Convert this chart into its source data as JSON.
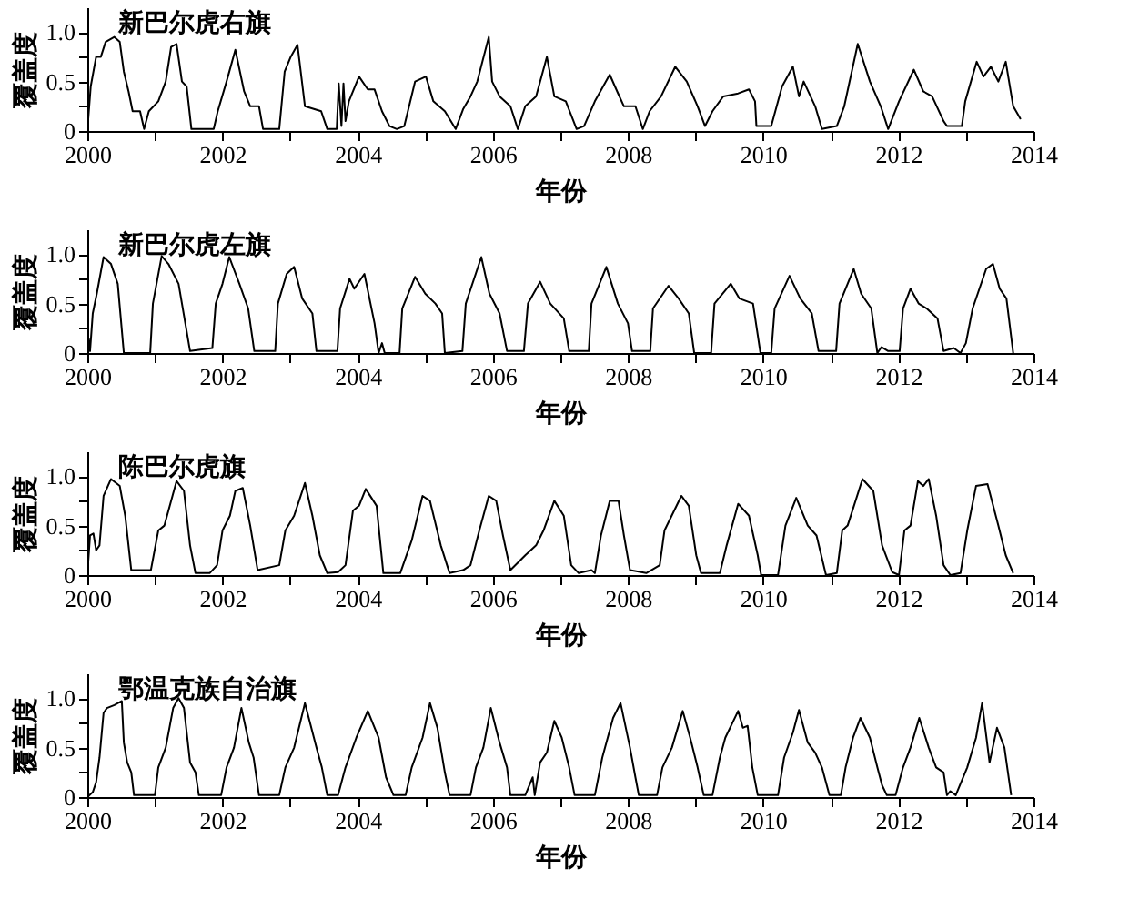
{
  "chart_data": [
    {
      "type": "line",
      "title": "新巴尔虎右旗",
      "xlabel": "年份",
      "ylabel": "覆盖度",
      "xlim": [
        2000,
        2014
      ],
      "ylim": [
        0,
        1.25
      ],
      "xticks": [
        2000,
        {
          "value": 2001,
          "label": null
        },
        2002,
        {
          "value": 2003,
          "label": null
        },
        2004,
        {
          "value": 2005,
          "label": null
        },
        2006,
        {
          "value": 2007,
          "label": null
        },
        2008,
        {
          "value": 2009,
          "label": null
        },
        2010,
        {
          "value": 2011,
          "label": null
        },
        2012,
        {
          "value": 2013,
          "label": null
        },
        2014
      ],
      "yticks": [
        0,
        {
          "value": 0.25,
          "label": null
        },
        0.5,
        {
          "value": 0.75,
          "label": null
        },
        {
          "value": 1,
          "label": "1.0"
        }
      ],
      "grid": false,
      "series": [
        {
          "color": "#000000",
          "x": [
            2000.0,
            2000.05,
            2000.13,
            2000.2,
            2000.27,
            2000.4,
            2000.48,
            2000.54,
            2000.61,
            2000.67,
            2000.78,
            2000.84,
            2000.91,
            2001.05,
            2001.16,
            2001.24,
            2001.32,
            2001.4,
            2001.47,
            2001.54,
            2001.87,
            2001.93,
            2002.06,
            2002.19,
            2002.32,
            2002.41,
            2002.54,
            2002.6,
            2002.84,
            2002.92,
            2003.01,
            2003.11,
            2003.22,
            2003.46,
            2003.55,
            2003.69,
            2003.72,
            2003.76,
            2003.79,
            2003.82,
            2003.87,
            2004.02,
            2004.15,
            2004.25,
            2004.36,
            2004.47,
            2004.58,
            2004.69,
            2004.85,
            2005.01,
            2005.12,
            2005.29,
            2005.45,
            2005.56,
            2005.67,
            2005.77,
            2005.94,
            2005.99,
            2006.1,
            2006.26,
            2006.37,
            2006.48,
            2006.64,
            2006.8,
            2006.91,
            2007.08,
            2007.24,
            2007.35,
            2007.51,
            2007.73,
            2007.84,
            2007.94,
            2008.11,
            2008.22,
            2008.32,
            2008.49,
            2008.7,
            2008.87,
            2009.03,
            2009.14,
            2009.25,
            2009.41,
            2009.63,
            2009.79,
            2009.88,
            2009.9,
            2010.12,
            2010.28,
            2010.44,
            2010.53,
            2010.6,
            2010.77,
            2010.87,
            2011.09,
            2011.2,
            2011.4,
            2011.58,
            2011.74,
            2011.85,
            2012.01,
            2012.23,
            2012.37,
            2012.5,
            2012.67,
            2012.72,
            2012.94,
            2012.99,
            2013.16,
            2013.26,
            2013.37,
            2013.48,
            2013.59,
            2013.7,
            2013.81
          ],
          "values": [
            0,
            0.45,
            0.75,
            0.75,
            0.9,
            0.95,
            0.9,
            0.6,
            0.4,
            0.2,
            0.2,
            0.02,
            0.2,
            0.3,
            0.5,
            0.85,
            0.88,
            0.5,
            0.45,
            0.02,
            0.02,
            0.2,
            0.5,
            0.82,
            0.4,
            0.25,
            0.25,
            0.02,
            0.02,
            0.6,
            0.75,
            0.87,
            0.25,
            0.2,
            0.02,
            0.02,
            0.48,
            0.05,
            0.48,
            0.1,
            0.3,
            0.55,
            0.42,
            0.42,
            0.2,
            0.05,
            0.02,
            0.05,
            0.5,
            0.55,
            0.3,
            0.2,
            0.02,
            0.22,
            0.35,
            0.5,
            0.95,
            0.5,
            0.35,
            0.25,
            0.02,
            0.25,
            0.35,
            0.75,
            0.35,
            0.3,
            0.02,
            0.05,
            0.3,
            0.57,
            0.4,
            0.25,
            0.25,
            0.02,
            0.2,
            0.35,
            0.65,
            0.5,
            0.25,
            0.05,
            0.2,
            0.35,
            0.38,
            0.42,
            0.3,
            0.05,
            0.05,
            0.45,
            0.65,
            0.35,
            0.5,
            0.25,
            0.02,
            0.05,
            0.25,
            0.88,
            0.5,
            0.25,
            0.02,
            0.3,
            0.62,
            0.4,
            0.35,
            0.1,
            0.05,
            0.05,
            0.3,
            0.7,
            0.55,
            0.65,
            0.5,
            0.7,
            0.25,
            0.12
          ]
        }
      ]
    },
    {
      "type": "line",
      "title": "新巴尔虎左旗",
      "xlabel": "年份",
      "ylabel": "覆盖度",
      "xlim": [
        2000,
        2014
      ],
      "ylim": [
        0,
        1.25
      ],
      "xticks": [
        2000,
        {
          "value": 2001,
          "label": null
        },
        2002,
        {
          "value": 2003,
          "label": null
        },
        2004,
        {
          "value": 2005,
          "label": null
        },
        2006,
        {
          "value": 2007,
          "label": null
        },
        2008,
        {
          "value": 2009,
          "label": null
        },
        2010,
        {
          "value": 2011,
          "label": null
        },
        2012,
        {
          "value": 2013,
          "label": null
        },
        2014
      ],
      "yticks": [
        0,
        {
          "value": 0.25,
          "label": null
        },
        0.5,
        {
          "value": 0.75,
          "label": null
        },
        {
          "value": 1,
          "label": "1.0"
        }
      ],
      "grid": false,
      "series": [
        {
          "color": "#000000",
          "x": [
            2000.0,
            2000.02,
            2000.04,
            2000.08,
            2000.14,
            2000.24,
            2000.35,
            2000.45,
            2000.54,
            2000.93,
            2000.97,
            2001.1,
            2001.2,
            2001.35,
            2001.52,
            2001.85,
            2001.9,
            2002.0,
            2002.1,
            2002.25,
            2002.38,
            2002.47,
            2002.78,
            2002.82,
            2002.95,
            2003.06,
            2003.18,
            2003.33,
            2003.39,
            2003.7,
            2003.74,
            2003.88,
            2003.95,
            2004.1,
            2004.25,
            2004.31,
            2004.36,
            2004.4,
            2004.62,
            2004.66,
            2004.85,
            2005.0,
            2005.15,
            2005.25,
            2005.29,
            2005.55,
            2005.6,
            2005.83,
            2005.95,
            2006.1,
            2006.21,
            2006.46,
            2006.52,
            2006.7,
            2006.85,
            2007.05,
            2007.13,
            2007.42,
            2007.46,
            2007.68,
            2007.85,
            2008.0,
            2008.06,
            2008.33,
            2008.37,
            2008.6,
            2008.75,
            2008.9,
            2008.98,
            2009.23,
            2009.28,
            2009.52,
            2009.65,
            2009.85,
            2009.96,
            2010.12,
            2010.17,
            2010.39,
            2010.55,
            2010.72,
            2010.82,
            2011.08,
            2011.13,
            2011.34,
            2011.45,
            2011.6,
            2011.69,
            2011.75,
            2011.85,
            2012.02,
            2012.07,
            2012.18,
            2012.3,
            2012.42,
            2012.58,
            2012.67,
            2012.82,
            2012.92,
            2013.0,
            2013.1,
            2013.3,
            2013.4,
            2013.5,
            2013.6,
            2013.7
          ],
          "values": [
            0.1,
            0.15,
            0.02,
            0.4,
            0.6,
            0.97,
            0.9,
            0.7,
            0,
            0,
            0.5,
            0.98,
            0.9,
            0.7,
            0.02,
            0.05,
            0.5,
            0.7,
            0.97,
            0.7,
            0.45,
            0.02,
            0.02,
            0.5,
            0.8,
            0.87,
            0.55,
            0.4,
            0.02,
            0.02,
            0.45,
            0.75,
            0.65,
            0.8,
            0.3,
            0,
            0.1,
            0,
            0,
            0.45,
            0.77,
            0.6,
            0.5,
            0.4,
            0,
            0.02,
            0.5,
            0.97,
            0.6,
            0.4,
            0.02,
            0.02,
            0.5,
            0.72,
            0.5,
            0.35,
            0.02,
            0.02,
            0.5,
            0.87,
            0.5,
            0.3,
            0.02,
            0.02,
            0.45,
            0.68,
            0.55,
            0.4,
            0,
            0,
            0.5,
            0.7,
            0.55,
            0.5,
            0,
            0,
            0.45,
            0.78,
            0.55,
            0.4,
            0.02,
            0.02,
            0.5,
            0.85,
            0.6,
            0.45,
            0,
            0.06,
            0.02,
            0.02,
            0.45,
            0.65,
            0.5,
            0.45,
            0.35,
            0.02,
            0.05,
            0,
            0.1,
            0.45,
            0.85,
            0.9,
            0.65,
            0.55,
            0
          ]
        }
      ]
    },
    {
      "type": "line",
      "title": "陈巴尔虎旗",
      "xlabel": "年份",
      "ylabel": "覆盖度",
      "xlim": [
        2000,
        2014
      ],
      "ylim": [
        0,
        1.25
      ],
      "xticks": [
        2000,
        {
          "value": 2001,
          "label": null
        },
        2002,
        {
          "value": 2003,
          "label": null
        },
        2004,
        {
          "value": 2005,
          "label": null
        },
        2006,
        {
          "value": 2007,
          "label": null
        },
        2008,
        {
          "value": 2009,
          "label": null
        },
        2010,
        {
          "value": 2011,
          "label": null
        },
        2012,
        {
          "value": 2013,
          "label": null
        },
        2014
      ],
      "yticks": [
        0,
        {
          "value": 0.25,
          "label": null
        },
        0.5,
        {
          "value": 0.75,
          "label": null
        },
        {
          "value": 1,
          "label": "1.0"
        }
      ],
      "grid": false,
      "series": [
        {
          "color": "#000000",
          "x": [
            2000.0,
            2000.04,
            2000.09,
            2000.13,
            2000.18,
            2000.24,
            2000.35,
            2000.48,
            2000.56,
            2000.65,
            2000.94,
            2001.05,
            2001.14,
            2001.32,
            2001.43,
            2001.52,
            2001.6,
            2001.81,
            2001.92,
            2002.0,
            2002.11,
            2002.19,
            2002.3,
            2002.41,
            2002.52,
            2002.84,
            2002.93,
            2003.06,
            2003.22,
            2003.33,
            2003.44,
            2003.55,
            2003.71,
            2003.82,
            2003.93,
            2004.02,
            2004.12,
            2004.28,
            2004.38,
            2004.63,
            2004.8,
            2004.96,
            2005.07,
            2005.23,
            2005.36,
            2005.56,
            2005.67,
            2005.8,
            2005.94,
            2006.05,
            2006.15,
            2006.26,
            2006.48,
            2006.64,
            2006.75,
            2006.91,
            2007.05,
            2007.16,
            2007.27,
            2007.46,
            2007.51,
            2007.6,
            2007.73,
            2007.86,
            2007.94,
            2008.03,
            2008.27,
            2008.47,
            2008.54,
            2008.79,
            2008.9,
            2009.01,
            2009.08,
            2009.36,
            2009.46,
            2009.63,
            2009.79,
            2009.92,
            2009.97,
            2010.22,
            2010.33,
            2010.49,
            2010.66,
            2010.79,
            2010.93,
            2011.09,
            2011.17,
            2011.25,
            2011.47,
            2011.63,
            2011.76,
            2011.91,
            2012.01,
            2012.09,
            2012.18,
            2012.29,
            2012.37,
            2012.45,
            2012.56,
            2012.67,
            2012.77,
            2012.92,
            2013.02,
            2013.15,
            2013.32,
            2013.48,
            2013.59,
            2013.7
          ],
          "values": [
            0,
            0.4,
            0.42,
            0.25,
            0.3,
            0.8,
            0.97,
            0.9,
            0.6,
            0.05,
            0.05,
            0.45,
            0.5,
            0.95,
            0.85,
            0.3,
            0.02,
            0.02,
            0.1,
            0.45,
            0.6,
            0.85,
            0.88,
            0.5,
            0.05,
            0.1,
            0.45,
            0.6,
            0.93,
            0.6,
            0.2,
            0.02,
            0.03,
            0.1,
            0.65,
            0.7,
            0.87,
            0.7,
            0.02,
            0.02,
            0.35,
            0.8,
            0.75,
            0.3,
            0.02,
            0.05,
            0.1,
            0.45,
            0.8,
            0.75,
            0.4,
            0.05,
            0.2,
            0.3,
            0.45,
            0.75,
            0.6,
            0.1,
            0.02,
            0.05,
            0.02,
            0.4,
            0.75,
            0.75,
            0.4,
            0.05,
            0.02,
            0.1,
            0.45,
            0.8,
            0.7,
            0.2,
            0.02,
            0.02,
            0.3,
            0.72,
            0.6,
            0.2,
            0,
            0,
            0.5,
            0.78,
            0.5,
            0.4,
            0,
            0.02,
            0.45,
            0.5,
            0.97,
            0.85,
            0.3,
            0.03,
            0,
            0.45,
            0.5,
            0.95,
            0.9,
            0.97,
            0.6,
            0.1,
            0,
            0.02,
            0.45,
            0.9,
            0.92,
            0.5,
            0.2,
            0.02
          ]
        }
      ]
    },
    {
      "type": "line",
      "title": "鄂温克族自治旗",
      "xlabel": "年份",
      "ylabel": "覆盖度",
      "xlim": [
        2000,
        2014
      ],
      "ylim": [
        0,
        1.25
      ],
      "xticks": [
        2000,
        {
          "value": 2001,
          "label": null
        },
        2002,
        {
          "value": 2003,
          "label": null
        },
        2004,
        {
          "value": 2005,
          "label": null
        },
        2006,
        {
          "value": 2007,
          "label": null
        },
        2008,
        {
          "value": 2009,
          "label": null
        },
        2010,
        {
          "value": 2011,
          "label": null
        },
        2012,
        {
          "value": 2013,
          "label": null
        },
        2014
      ],
      "yticks": [
        0,
        {
          "value": 0.25,
          "label": null
        },
        0.5,
        {
          "value": 0.75,
          "label": null
        },
        {
          "value": 1,
          "label": "1.0"
        }
      ],
      "grid": false,
      "series": [
        {
          "color": "#000000",
          "x": [
            2000.0,
            2000.08,
            2000.13,
            2000.18,
            2000.24,
            2000.29,
            2000.4,
            2000.51,
            2000.54,
            2000.59,
            2000.65,
            2000.69,
            2001.0,
            2001.05,
            2001.16,
            2001.27,
            2001.35,
            2001.43,
            2001.52,
            2001.6,
            2001.65,
            2001.98,
            2002.06,
            2002.17,
            2002.28,
            2002.39,
            2002.46,
            2002.54,
            2002.84,
            2002.93,
            2003.06,
            2003.22,
            2003.39,
            2003.47,
            2003.55,
            2003.71,
            2003.82,
            2003.98,
            2004.15,
            2004.31,
            2004.42,
            2004.53,
            2004.71,
            2004.8,
            2004.96,
            2005.07,
            2005.18,
            2005.29,
            2005.36,
            2005.67,
            2005.75,
            2005.86,
            2005.97,
            2006.1,
            2006.21,
            2006.26,
            2006.48,
            2006.59,
            2006.62,
            2006.7,
            2006.8,
            2006.91,
            2007.02,
            2007.13,
            2007.21,
            2007.4,
            2007.51,
            2007.62,
            2007.78,
            2007.89,
            2008.03,
            2008.11,
            2008.16,
            2008.43,
            2008.51,
            2008.65,
            2008.81,
            2008.92,
            2009.03,
            2009.12,
            2009.25,
            2009.36,
            2009.44,
            2009.63,
            2009.7,
            2009.77,
            2009.84,
            2009.92,
            2010.22,
            2010.31,
            2010.44,
            2010.53,
            2010.66,
            2010.77,
            2010.87,
            2010.98,
            2011.15,
            2011.22,
            2011.33,
            2011.44,
            2011.58,
            2011.69,
            2011.76,
            2011.83,
            2011.96,
            2012.07,
            2012.18,
            2012.31,
            2012.45,
            2012.56,
            2012.67,
            2012.72,
            2012.77,
            2012.85,
            2013.02,
            2013.15,
            2013.24,
            2013.35,
            2013.46,
            2013.57,
            2013.67
          ],
          "values": [
            0,
            0.05,
            0.15,
            0.4,
            0.85,
            0.9,
            0.93,
            0.97,
            0.55,
            0.35,
            0.25,
            0.02,
            0.02,
            0.3,
            0.5,
            0.9,
            1.0,
            0.9,
            0.35,
            0.25,
            0.02,
            0.02,
            0.3,
            0.5,
            0.9,
            0.55,
            0.4,
            0.02,
            0.02,
            0.3,
            0.5,
            0.95,
            0.5,
            0.3,
            0.02,
            0.02,
            0.3,
            0.6,
            0.87,
            0.6,
            0.2,
            0.02,
            0.02,
            0.3,
            0.6,
            0.95,
            0.7,
            0.25,
            0.02,
            0.02,
            0.3,
            0.5,
            0.9,
            0.55,
            0.3,
            0.02,
            0.02,
            0.2,
            0.02,
            0.35,
            0.45,
            0.77,
            0.6,
            0.3,
            0.02,
            0.02,
            0.02,
            0.4,
            0.8,
            0.95,
            0.5,
            0.2,
            0.02,
            0.02,
            0.3,
            0.5,
            0.87,
            0.6,
            0.3,
            0.02,
            0.02,
            0.4,
            0.6,
            0.87,
            0.7,
            0.72,
            0.3,
            0.02,
            0.02,
            0.4,
            0.65,
            0.88,
            0.55,
            0.45,
            0.3,
            0.02,
            0.02,
            0.3,
            0.6,
            0.8,
            0.6,
            0.3,
            0.12,
            0.02,
            0.02,
            0.3,
            0.5,
            0.8,
            0.5,
            0.3,
            0.25,
            0.02,
            0.06,
            0.02,
            0.3,
            0.6,
            0.95,
            0.35,
            0.7,
            0.5,
            0.02
          ]
        }
      ]
    }
  ]
}
